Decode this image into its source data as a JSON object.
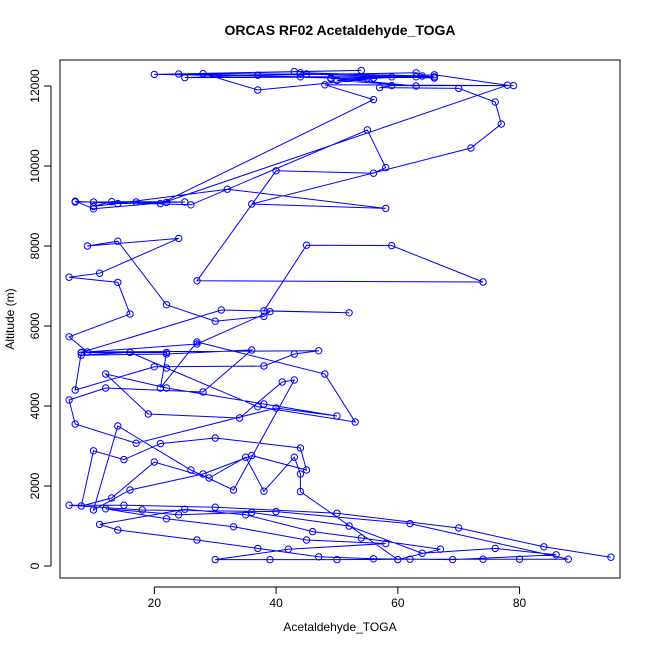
{
  "chart_data": {
    "type": "line",
    "title": "ORCAS RF02 Acetaldehyde_TOGA",
    "xlabel": "Acetaldehyde_TOGA",
    "ylabel": "Altitude (m)",
    "xlim": [
      4.5,
      96.5
    ],
    "ylim": [
      -300,
      12650
    ],
    "x_ticks": [
      20,
      40,
      60,
      80
    ],
    "y_ticks": [
      0,
      2000,
      4000,
      6000,
      8000,
      10000,
      12000
    ],
    "series": [
      {
        "name": "Acetaldehyde_TOGA",
        "color": "#0000ff",
        "marker": "open-circle",
        "points": [
          [
            95,
            220
          ],
          [
            84,
            480
          ],
          [
            70,
            950
          ],
          [
            50,
            1320
          ],
          [
            30,
            1470
          ],
          [
            15,
            1520
          ],
          [
            6,
            1520
          ],
          [
            18,
            1400
          ],
          [
            40,
            1360
          ],
          [
            62,
            1060
          ],
          [
            88,
            170
          ],
          [
            80,
            170
          ],
          [
            74,
            170
          ],
          [
            62,
            170
          ],
          [
            50,
            160
          ],
          [
            39,
            160
          ],
          [
            30,
            160
          ],
          [
            42,
            420
          ],
          [
            58,
            560
          ],
          [
            45,
            650
          ],
          [
            33,
            980
          ],
          [
            22,
            1180
          ],
          [
            12,
            1430
          ],
          [
            24,
            1280
          ],
          [
            36,
            1340
          ],
          [
            52,
            1000
          ],
          [
            64,
            320
          ],
          [
            76,
            440
          ],
          [
            86,
            280
          ],
          [
            69,
            160
          ],
          [
            56,
            180
          ],
          [
            47,
            230
          ],
          [
            37,
            440
          ],
          [
            27,
            650
          ],
          [
            14,
            900
          ],
          [
            11,
            1040
          ],
          [
            25,
            1420
          ],
          [
            35,
            1280
          ],
          [
            46,
            860
          ],
          [
            54,
            700
          ],
          [
            67,
            420
          ],
          [
            60,
            160
          ],
          [
            44,
            1860
          ],
          [
            44,
            2300
          ],
          [
            43,
            2720
          ],
          [
            38,
            1870
          ],
          [
            35,
            2720
          ],
          [
            29,
            2200
          ],
          [
            20,
            2600
          ],
          [
            13,
            1700
          ],
          [
            8,
            1500
          ],
          [
            10,
            2880
          ],
          [
            15,
            2660
          ],
          [
            21,
            3060
          ],
          [
            30,
            3200
          ],
          [
            44,
            2950
          ],
          [
            45,
            2400
          ],
          [
            36,
            2760
          ],
          [
            28,
            2300
          ],
          [
            16,
            1900
          ],
          [
            10,
            1400
          ],
          [
            14,
            3500
          ],
          [
            26,
            2400
          ],
          [
            33,
            1900
          ],
          [
            43,
            4650
          ],
          [
            41,
            4600
          ],
          [
            34,
            3700
          ],
          [
            19,
            3800
          ],
          [
            12,
            4800
          ],
          [
            22,
            4450
          ],
          [
            38,
            4050
          ],
          [
            50,
            3750
          ],
          [
            40,
            3950
          ],
          [
            17,
            3070
          ],
          [
            7,
            3550
          ],
          [
            6,
            4150
          ],
          [
            12,
            4450
          ],
          [
            28,
            4350
          ],
          [
            36,
            5400
          ],
          [
            22,
            5300
          ],
          [
            8,
            5270
          ],
          [
            16,
            5340
          ],
          [
            22,
            4950
          ],
          [
            37,
            3980
          ],
          [
            53,
            3600
          ],
          [
            48,
            4800
          ],
          [
            27,
            5600
          ],
          [
            21,
            4450
          ],
          [
            22,
            5340
          ],
          [
            8,
            5330
          ],
          [
            7,
            4400
          ],
          [
            20,
            4980
          ],
          [
            38,
            5000
          ],
          [
            43,
            5300
          ],
          [
            47,
            5380
          ],
          [
            9,
            5350
          ],
          [
            6,
            5730
          ],
          [
            16,
            6300
          ],
          [
            14,
            7090
          ],
          [
            6,
            7220
          ],
          [
            11,
            7320
          ],
          [
            24,
            8190
          ],
          [
            9,
            8000
          ],
          [
            14,
            8120
          ],
          [
            22,
            6530
          ],
          [
            30,
            6120
          ],
          [
            38,
            6240
          ],
          [
            39,
            6360
          ],
          [
            27,
            5550
          ],
          [
            8,
            5340
          ],
          [
            31,
            6400
          ],
          [
            52,
            6330
          ],
          [
            38,
            6380
          ],
          [
            45,
            8020
          ],
          [
            59,
            8010
          ],
          [
            74,
            7100
          ],
          [
            27,
            7130
          ],
          [
            40,
            9880
          ],
          [
            56,
            9820
          ],
          [
            58,
            9960
          ],
          [
            55,
            10900
          ],
          [
            26,
            9030
          ],
          [
            10,
            9100
          ],
          [
            7,
            9100
          ],
          [
            17,
            9100
          ],
          [
            22,
            9090
          ],
          [
            10,
            8930
          ],
          [
            7,
            9120
          ],
          [
            14,
            9060
          ],
          [
            25,
            9100
          ],
          [
            13,
            9110
          ],
          [
            10,
            8990
          ],
          [
            32,
            9420
          ],
          [
            58,
            8940
          ],
          [
            36,
            9050
          ],
          [
            72,
            10450
          ],
          [
            77,
            11050
          ],
          [
            76,
            11600
          ],
          [
            70,
            11940
          ],
          [
            57,
            11960
          ],
          [
            59,
            12010
          ],
          [
            79,
            12010
          ],
          [
            48,
            12030
          ],
          [
            56,
            11660
          ],
          [
            21,
            9060
          ],
          [
            78,
            12020
          ],
          [
            66,
            12280
          ],
          [
            50,
            12140
          ],
          [
            63,
            12000
          ],
          [
            49,
            12200
          ],
          [
            24,
            12300
          ],
          [
            45,
            12300
          ],
          [
            66,
            12200
          ],
          [
            63,
            12330
          ],
          [
            37,
            12270
          ],
          [
            25,
            12210
          ],
          [
            59,
            12230
          ],
          [
            37,
            11900
          ],
          [
            28,
            12310
          ],
          [
            54,
            12390
          ],
          [
            43,
            12360
          ],
          [
            20,
            12290
          ],
          [
            44,
            12230
          ],
          [
            63,
            12230
          ],
          [
            56,
            12200
          ],
          [
            66,
            12230
          ],
          [
            44,
            12330
          ],
          [
            64,
            12250
          ],
          [
            49,
            12180
          ],
          [
            55,
            12200
          ]
        ]
      }
    ]
  }
}
